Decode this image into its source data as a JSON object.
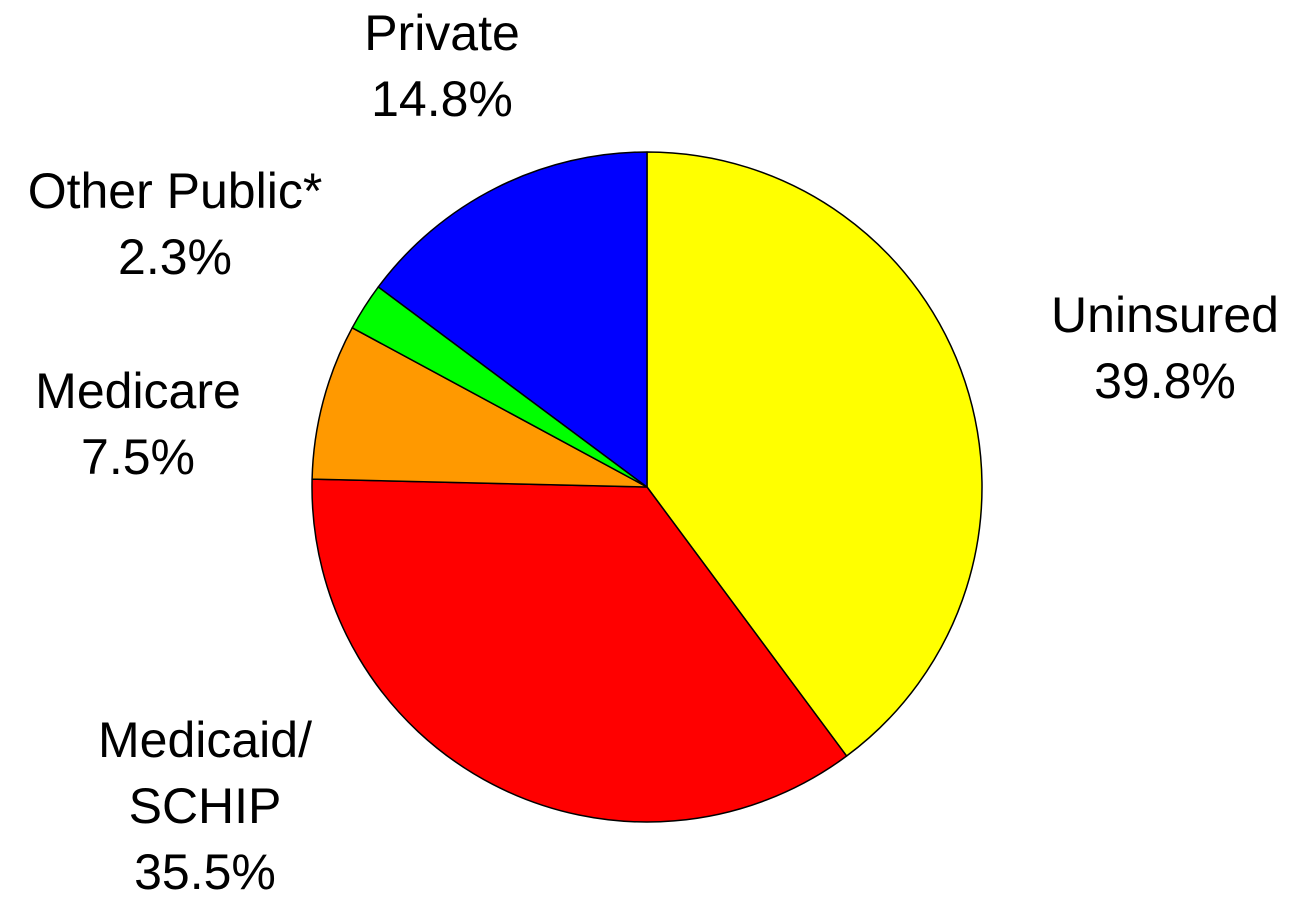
{
  "chart_data": {
    "type": "pie",
    "start_angle": "12 o'clock",
    "direction": "clockwise",
    "slices": [
      {
        "label_lines": [
          "Uninsured"
        ],
        "value_label": "39.8%",
        "value": 39.8,
        "color": "#FFFF00"
      },
      {
        "label_lines": [
          "Medicaid/",
          "SCHIP"
        ],
        "value_label": "35.5%",
        "value": 35.5,
        "color": "#FF0000"
      },
      {
        "label_lines": [
          "Medicare"
        ],
        "value_label": "7.5%",
        "value": 7.5,
        "color": "#FF9900"
      },
      {
        "label_lines": [
          "Other Public*"
        ],
        "value_label": "2.3%",
        "value": 2.3,
        "color": "#00FF00"
      },
      {
        "label_lines": [
          "Private"
        ],
        "value_label": "14.8%",
        "value": 14.8,
        "color": "#0000FF"
      }
    ],
    "slice_outline_color": "#000000"
  }
}
